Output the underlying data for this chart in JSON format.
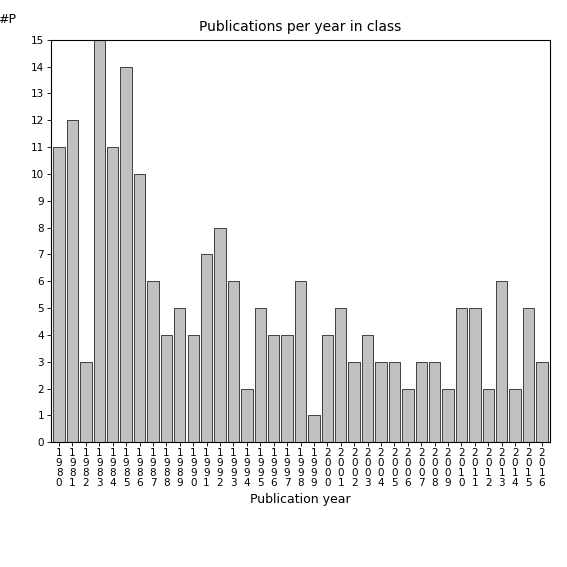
{
  "title": "Publications per year in class",
  "xlabel": "Publication year",
  "ylabel_text": "#P",
  "years": [
    1980,
    1981,
    1982,
    1983,
    1984,
    1985,
    1986,
    1987,
    1988,
    1989,
    1990,
    1991,
    1992,
    1993,
    1994,
    1995,
    1996,
    1997,
    1998,
    1999,
    2000,
    2001,
    2002,
    2003,
    2004,
    2005,
    2006,
    2007,
    2008,
    2009,
    2010,
    2011,
    2012,
    2013,
    2014,
    2015,
    2016
  ],
  "values": [
    11,
    12,
    3,
    15,
    11,
    14,
    10,
    6,
    4,
    5,
    4,
    7,
    8,
    6,
    2,
    5,
    4,
    4,
    6,
    1,
    4,
    5,
    3,
    4,
    3,
    3,
    2,
    3,
    3,
    2,
    5,
    5,
    2,
    6,
    2,
    5,
    3
  ],
  "bar_color": "#c0c0c0",
  "bar_edge_color": "#000000",
  "ylim": [
    0,
    15
  ],
  "yticks": [
    0,
    1,
    2,
    3,
    4,
    5,
    6,
    7,
    8,
    9,
    10,
    11,
    12,
    13,
    14,
    15
  ],
  "background_color": "#ffffff",
  "title_fontsize": 10,
  "label_fontsize": 9,
  "tick_fontsize": 7.5,
  "ylabel_fontsize": 9
}
